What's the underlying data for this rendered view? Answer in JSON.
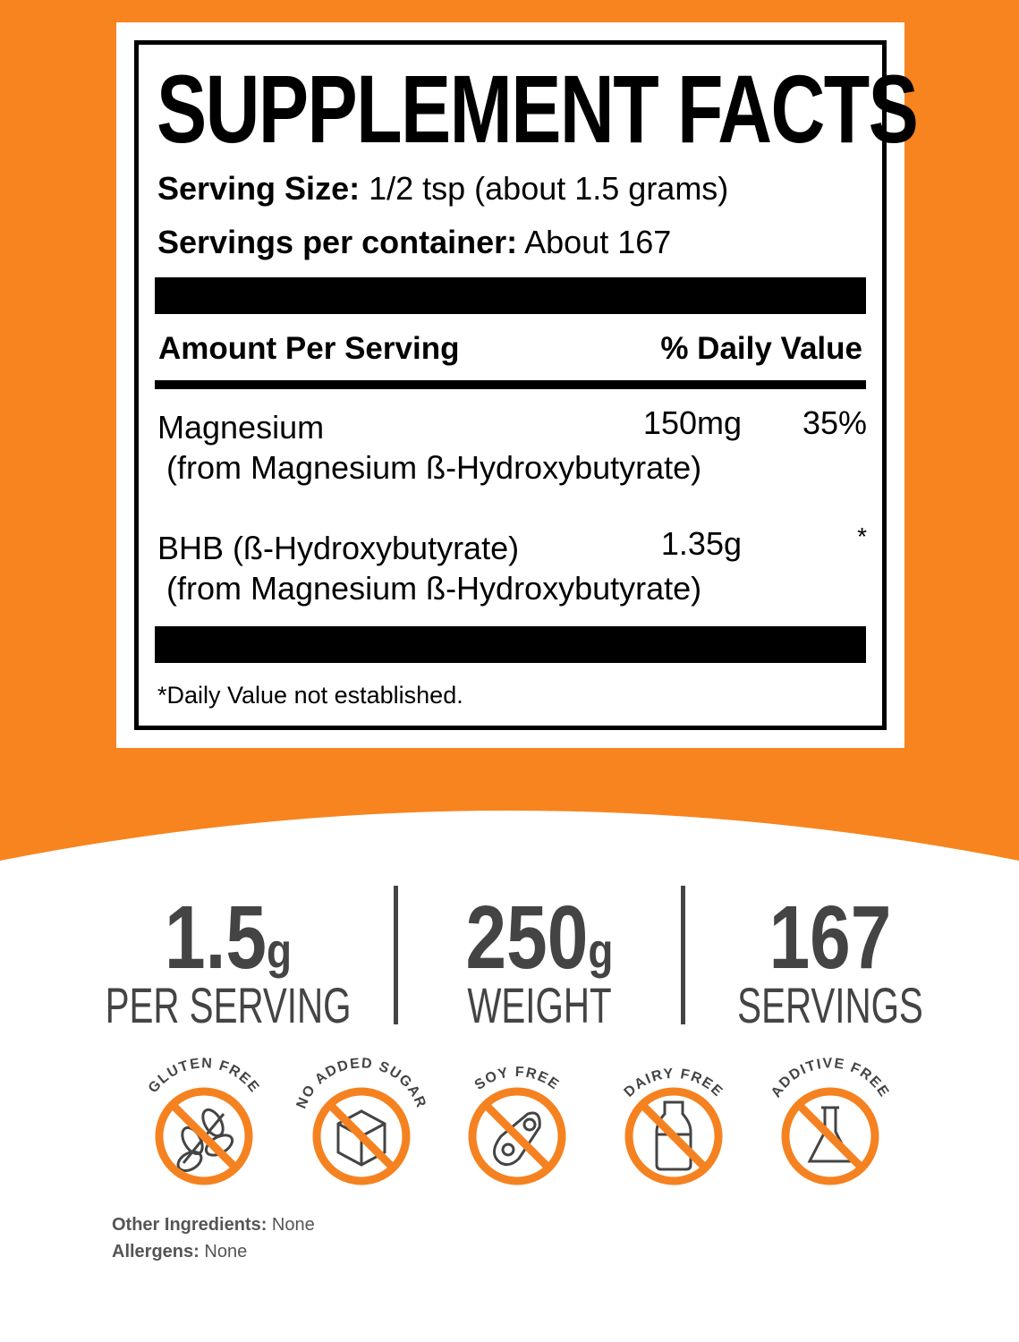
{
  "colors": {
    "orange": "#f7841f",
    "badge_orange": "#f58220",
    "text_gray": "#444444"
  },
  "label": {
    "title": "SUPPLEMENT FACTS",
    "serving_size_label": "Serving Size:",
    "serving_size_value": "1/2 tsp (about 1.5 grams)",
    "servings_label": "Servings per container:",
    "servings_value": "About 167",
    "header_amount": "Amount Per Serving",
    "header_dv": "% Daily Value",
    "rows": [
      {
        "name": "Magnesium",
        "source": "(from Magnesium ß-Hydroxybutyrate)",
        "amount": "150mg",
        "dv": "35%"
      },
      {
        "name": "BHB (ß-Hydroxybutyrate)",
        "source": "(from Magnesium ß-Hydroxybutyrate)",
        "amount": "1.35g",
        "dv": "*"
      }
    ],
    "footnote": "*Daily Value not established."
  },
  "stats": [
    {
      "value": "1.5",
      "unit": "g",
      "label": "PER SERVING"
    },
    {
      "value": "250",
      "unit": "g",
      "label": "WEIGHT"
    },
    {
      "value": "167",
      "unit": "",
      "label": "SERVINGS"
    }
  ],
  "badges": [
    {
      "text": "GLUTEN FREE",
      "icon": "wheat-icon"
    },
    {
      "text": "NO ADDED SUGAR",
      "icon": "sugar-cube-icon"
    },
    {
      "text": "SOY FREE",
      "icon": "soybean-icon"
    },
    {
      "text": "DAIRY FREE",
      "icon": "milk-bottle-icon"
    },
    {
      "text": "ADDITIVE FREE",
      "icon": "flask-icon"
    }
  ],
  "footer": {
    "other_label": "Other Ingredients:",
    "other_value": "None",
    "allergens_label": "Allergens:",
    "allergens_value": "None"
  }
}
